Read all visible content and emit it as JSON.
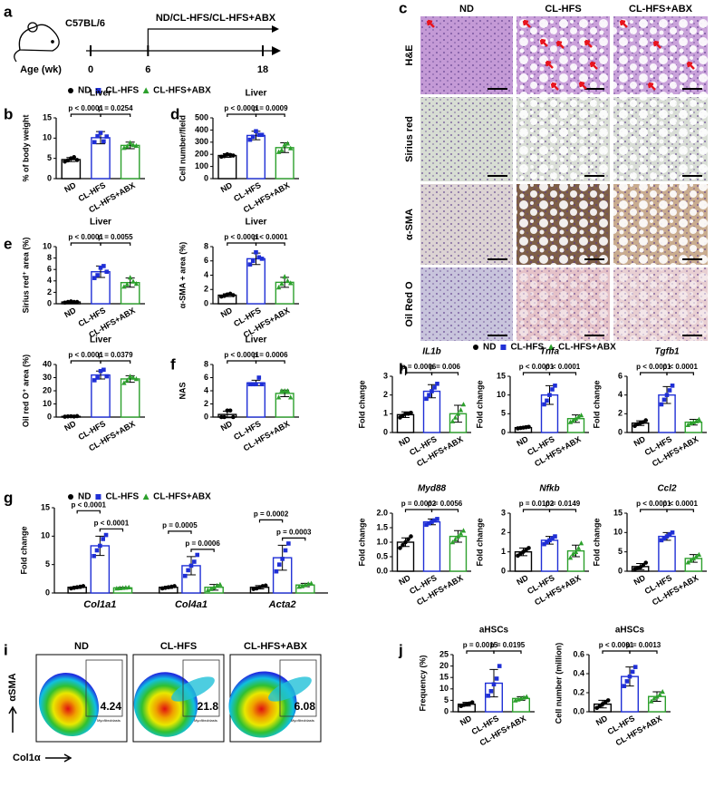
{
  "panel_labels": [
    "a",
    "b",
    "c",
    "d",
    "e",
    "f",
    "g",
    "h",
    "i",
    "j"
  ],
  "schematic": {
    "strain": "C57BL/6",
    "groups": "ND/CL-HFS/CL-HFS+ABX",
    "age_label": "Age (wk)",
    "ticks": [
      0,
      6,
      18
    ]
  },
  "legend": {
    "names": [
      "ND",
      "CL-HFS",
      "CL-HFS+ABX"
    ],
    "colors": [
      "#000000",
      "#1f2fd6",
      "#2ca02c"
    ]
  },
  "histology": {
    "columns": [
      "ND",
      "CL-HFS",
      "CL-HFS+ABX"
    ],
    "rows": [
      "H&E",
      "Sirius red",
      "α-SMA",
      "Oil Red O"
    ]
  },
  "flow": {
    "ylabel": "αSMA",
    "xlabel": "Col1α",
    "gate": "Myofibroblasts",
    "plots": [
      {
        "title": "ND",
        "value": 4.24
      },
      {
        "title": "CL-HFS",
        "value": 21.8
      },
      {
        "title": "CL-HFS+ABX",
        "value": 6.08
      }
    ]
  },
  "chart_data": [
    {
      "type": "bar",
      "title": "Liver",
      "ylabel": "% of body weight",
      "categories": [
        "ND",
        "CL-HFS",
        "CL-HFS+ABX"
      ],
      "values": [
        4.7,
        10.1,
        8.2
      ],
      "errors": [
        0.5,
        1.5,
        0.8
      ],
      "points": [
        [
          4.2,
          4.5,
          5.0,
          5.3,
          4.6
        ],
        [
          9.0,
          10.5,
          11.3,
          9.2,
          10.4
        ],
        [
          7.6,
          8.0,
          8.9,
          8.3,
          8.1
        ]
      ],
      "ylim": [
        0,
        15
      ],
      "yticks": [
        0,
        5,
        10,
        15
      ],
      "p_values": [
        "p < 0.0001",
        "p = 0.0254"
      ]
    },
    {
      "type": "bar",
      "title": "Liver",
      "ylabel": "Cell number/field",
      "categories": [
        "ND",
        "CL-HFS",
        "CL-HFS+ABX"
      ],
      "values": [
        190,
        355,
        255
      ],
      "errors": [
        15,
        35,
        40
      ],
      "points": [
        [
          180,
          185,
          200,
          195,
          190
        ],
        [
          320,
          345,
          390,
          360,
          360
        ],
        [
          220,
          235,
          280,
          290,
          250
        ]
      ],
      "ylim": [
        0,
        500
      ],
      "yticks": [
        0,
        100,
        200,
        300,
        400,
        500
      ],
      "p_values": [
        "p < 0.0001",
        "p = 0.0009"
      ]
    },
    {
      "type": "bar",
      "title": "Liver",
      "ylabel": "Sirius red⁺ area (%)",
      "categories": [
        "ND",
        "CL-HFS",
        "CL-HFS+ABX"
      ],
      "values": [
        0.3,
        5.6,
        3.7
      ],
      "errors": [
        0.1,
        1.0,
        0.8
      ],
      "points": [
        [
          0.2,
          0.3,
          0.4,
          0.3,
          0.3
        ],
        [
          4.5,
          5.0,
          6.3,
          6.6,
          5.6
        ],
        [
          3.0,
          3.4,
          4.6,
          3.9,
          3.5
        ]
      ],
      "ylim": [
        0,
        10
      ],
      "yticks": [
        0,
        2,
        4,
        6,
        8,
        10
      ],
      "p_values": [
        "p < 0.0001",
        "p = 0.0055"
      ]
    },
    {
      "type": "bar",
      "title": "Liver",
      "ylabel": "α-SMA + area (%)",
      "categories": [
        "ND",
        "CL-HFS",
        "CL-HFS+ABX"
      ],
      "values": [
        1.2,
        6.3,
        3.0
      ],
      "errors": [
        0.2,
        0.8,
        0.7
      ],
      "points": [
        [
          1.0,
          1.1,
          1.3,
          1.4,
          1.2
        ],
        [
          5.5,
          6.0,
          7.2,
          6.5,
          6.3
        ],
        [
          2.3,
          2.8,
          3.8,
          3.2,
          2.9
        ]
      ],
      "ylim": [
        0,
        8
      ],
      "yticks": [
        0,
        2,
        4,
        6,
        8
      ],
      "p_values": [
        "p < 0.0001",
        "p < 0.0001"
      ]
    },
    {
      "type": "bar",
      "title": "Liver",
      "ylabel": "Oil red O⁺ area (%)",
      "categories": [
        "ND",
        "CL-HFS",
        "CL-HFS+ABX"
      ],
      "values": [
        0.5,
        32,
        29
      ],
      "errors": [
        0.2,
        3,
        2.5
      ],
      "points": [
        [
          0.3,
          0.5,
          0.6,
          0.4,
          0.7
        ],
        [
          28,
          30,
          35,
          36,
          31
        ],
        [
          26,
          28,
          31,
          30,
          29
        ]
      ],
      "ylim": [
        0,
        40
      ],
      "yticks": [
        0,
        10,
        20,
        30,
        40
      ],
      "p_values": [
        "p < 0.0001",
        "p = 0.0379"
      ]
    },
    {
      "type": "bar",
      "title": "Liver",
      "ylabel": "NAS",
      "categories": [
        "ND",
        "CL-HFS",
        "CL-HFS+ABX"
      ],
      "values": [
        0.4,
        5.2,
        3.6
      ],
      "errors": [
        0.5,
        0.4,
        0.5
      ],
      "points": [
        [
          0,
          0,
          1,
          1,
          0
        ],
        [
          5,
          5,
          5,
          6,
          5
        ],
        [
          3,
          4,
          4,
          4,
          3
        ]
      ],
      "ylim": [
        0,
        8
      ],
      "yticks": [
        0,
        2,
        4,
        6,
        8
      ],
      "p_values": [
        "p < 0.0001",
        "p = 0.0006"
      ]
    },
    {
      "type": "grouped_bar",
      "ylabel": "Fold change",
      "categories": [
        "Col1a1",
        "Col4a1",
        "Acta2"
      ],
      "series": [
        {
          "name": "ND",
          "color": "#000000",
          "values": [
            1.0,
            1.0,
            1.0
          ],
          "errors": [
            0.2,
            0.2,
            0.3
          ],
          "points": [
            [
              0.8,
              0.9,
              1.0,
              1.1,
              1.2
            ],
            [
              0.8,
              0.9,
              1.0,
              1.1,
              1.2
            ],
            [
              0.7,
              0.8,
              1.0,
              1.2,
              1.3
            ]
          ]
        },
        {
          "name": "CL-HFS",
          "color": "#1f2fd6",
          "values": [
            8.3,
            4.8,
            6.2
          ],
          "errors": [
            1.7,
            1.6,
            2.2
          ],
          "points": [
            [
              6.5,
              7.5,
              8.3,
              9.5,
              10.2
            ],
            [
              3.0,
              4.0,
              4.8,
              5.5,
              6.7
            ],
            [
              3.8,
              5.0,
              6.0,
              7.5,
              8.7
            ]
          ]
        },
        {
          "name": "CL-HFS+ABX",
          "color": "#2ca02c",
          "values": [
            0.9,
            1.0,
            1.4
          ],
          "errors": [
            0.1,
            0.5,
            0.3
          ],
          "points": [
            [
              0.8,
              0.85,
              0.9,
              0.95,
              1.0
            ],
            [
              0.5,
              0.7,
              1.0,
              1.3,
              1.5
            ],
            [
              1.1,
              1.2,
              1.4,
              1.6,
              1.7
            ]
          ]
        }
      ],
      "ylim": [
        0,
        15
      ],
      "yticks": [
        0,
        5,
        10,
        15
      ],
      "p_values": [
        [
          "p < 0.0001",
          "p < 0.0001"
        ],
        [
          "p = 0.0005",
          "p = 0.0006"
        ],
        [
          "p = 0.0002",
          "p = 0.0003"
        ]
      ]
    },
    {
      "type": "bar",
      "title": "IL1b",
      "ylabel": "Fold change",
      "categories": [
        "ND",
        "CL-HFS",
        "CL-HFS+ABX"
      ],
      "values": [
        0.95,
        2.2,
        1.0
      ],
      "errors": [
        0.15,
        0.35,
        0.45
      ],
      "points": [
        [
          0.8,
          0.9,
          1.0,
          1.0,
          1.05
        ],
        [
          1.8,
          2.0,
          2.2,
          2.4,
          2.6
        ],
        [
          0.6,
          0.8,
          1.0,
          1.2,
          1.5
        ]
      ],
      "ylim": [
        0,
        3
      ],
      "yticks": [
        0,
        1,
        2,
        3
      ],
      "p_values": [
        "p = 0.0006",
        "p = 0.006"
      ]
    },
    {
      "type": "bar",
      "title": "Tnfa",
      "ylabel": "Fold change",
      "categories": [
        "ND",
        "CL-HFS",
        "CL-HFS+ABX"
      ],
      "values": [
        1.3,
        10,
        3.7
      ],
      "errors": [
        0.2,
        2.5,
        1.0
      ],
      "points": [
        [
          1.1,
          1.2,
          1.3,
          1.4,
          1.5
        ],
        [
          7.5,
          8.5,
          10,
          11.5,
          12.5
        ],
        [
          2.8,
          3.2,
          3.7,
          4.2,
          4.6
        ]
      ],
      "ylim": [
        0,
        15
      ],
      "yticks": [
        0,
        5,
        10,
        15
      ],
      "p_values": [
        "p < 0.0001",
        "p < 0.0001"
      ]
    },
    {
      "type": "bar",
      "title": "Tgfb1",
      "ylabel": "Fold change",
      "categories": [
        "ND",
        "CL-HFS",
        "CL-HFS+ABX"
      ],
      "values": [
        1.0,
        4.0,
        1.1
      ],
      "errors": [
        0.25,
        0.9,
        0.3
      ],
      "points": [
        [
          0.7,
          0.9,
          1.0,
          1.1,
          1.3
        ],
        [
          3.0,
          3.5,
          4.0,
          4.5,
          5.0
        ],
        [
          0.8,
          1.0,
          1.1,
          1.2,
          1.4
        ]
      ],
      "ylim": [
        0,
        6
      ],
      "yticks": [
        0,
        2,
        4,
        6
      ],
      "p_values": [
        "p < 0.0001",
        "p < 0.0001"
      ]
    },
    {
      "type": "bar",
      "title": "Myd88",
      "ylabel": "Fold change",
      "categories": [
        "ND",
        "CL-HFS",
        "CL-HFS+ABX"
      ],
      "values": [
        1.0,
        1.7,
        1.2
      ],
      "errors": [
        0.15,
        0.1,
        0.2
      ],
      "points": [
        [
          0.8,
          0.9,
          1.0,
          1.1,
          1.2
        ],
        [
          1.6,
          1.65,
          1.7,
          1.75,
          1.8
        ],
        [
          1.0,
          1.1,
          1.2,
          1.3,
          1.4
        ]
      ],
      "ylim": [
        0,
        2
      ],
      "yticks": [
        {
          "value": 0,
          "label": "0.0"
        },
        0.5,
        {
          "value": 1,
          "label": "1.0"
        },
        1.5,
        {
          "value": 2,
          "label": "2.0"
        }
      ],
      "p_values": [
        "p = 0.0002",
        "p = 0.0056"
      ]
    },
    {
      "type": "bar",
      "title": "Nfkb",
      "ylabel": "Fold change",
      "categories": [
        "ND",
        "CL-HFS",
        "CL-HFS+ABX"
      ],
      "values": [
        1.0,
        1.6,
        1.05
      ],
      "errors": [
        0.2,
        0.2,
        0.3
      ],
      "points": [
        [
          0.8,
          0.9,
          1.0,
          1.1,
          1.2
        ],
        [
          1.4,
          1.5,
          1.6,
          1.7,
          1.8
        ],
        [
          0.7,
          0.9,
          1.0,
          1.2,
          1.45
        ]
      ],
      "ylim": [
        0,
        3
      ],
      "yticks": [
        0,
        1,
        2,
        3
      ],
      "p_values": [
        "p = 0.0102",
        "p = 0.0149"
      ]
    },
    {
      "type": "bar",
      "title": "Ccl2",
      "ylabel": "Fold change",
      "categories": [
        "ND",
        "CL-HFS",
        "CL-HFS+ABX"
      ],
      "values": [
        1.2,
        9.0,
        3.3
      ],
      "errors": [
        0.8,
        1.0,
        1.0
      ],
      "points": [
        [
          0.5,
          0.8,
          1.0,
          1.5,
          2.2
        ],
        [
          8.0,
          8.5,
          9.0,
          9.5,
          10.0
        ],
        [
          2.3,
          2.8,
          3.3,
          3.8,
          4.3
        ]
      ],
      "ylim": [
        0,
        15
      ],
      "yticks": [
        0,
        5,
        10,
        15
      ],
      "p_values": [
        "p < 0.0001",
        "p < 0.0001"
      ]
    },
    {
      "type": "bar",
      "title": "aHSCs",
      "ylabel": "Frequency (%)",
      "categories": [
        "ND",
        "CL-HFS",
        "CL-HFS+ABX"
      ],
      "values": [
        3.3,
        12.5,
        5.8
      ],
      "errors": [
        0.8,
        6,
        0.8
      ],
      "points": [
        [
          2.5,
          3.0,
          3.3,
          3.6,
          4.1
        ],
        [
          7.0,
          9.0,
          12.0,
          14.5,
          20.0
        ],
        [
          5.0,
          5.4,
          5.8,
          6.2,
          6.6
        ]
      ],
      "ylim": [
        0,
        25
      ],
      "yticks": [
        0,
        5,
        10,
        15,
        20,
        25
      ],
      "p_values": [
        "p = 0.0015",
        "p = 0.0195"
      ]
    },
    {
      "type": "bar",
      "title": "aHSCs",
      "ylabel": "Cell number (million)",
      "categories": [
        "ND",
        "CL-HFS",
        "CL-HFS+ABX"
      ],
      "values": [
        0.08,
        0.37,
        0.16
      ],
      "errors": [
        0.04,
        0.1,
        0.05
      ],
      "points": [
        [
          0.04,
          0.06,
          0.08,
          0.1,
          0.12
        ],
        [
          0.27,
          0.32,
          0.37,
          0.42,
          0.47
        ],
        [
          0.11,
          0.14,
          0.16,
          0.18,
          0.21
        ]
      ],
      "ylim": [
        0,
        0.6
      ],
      "yticks": [
        {
          "value": 0,
          "label": "0.0"
        },
        0.2,
        0.4,
        0.6
      ],
      "p_values": [
        "p < 0.0001",
        "p = 0.0013"
      ]
    }
  ]
}
